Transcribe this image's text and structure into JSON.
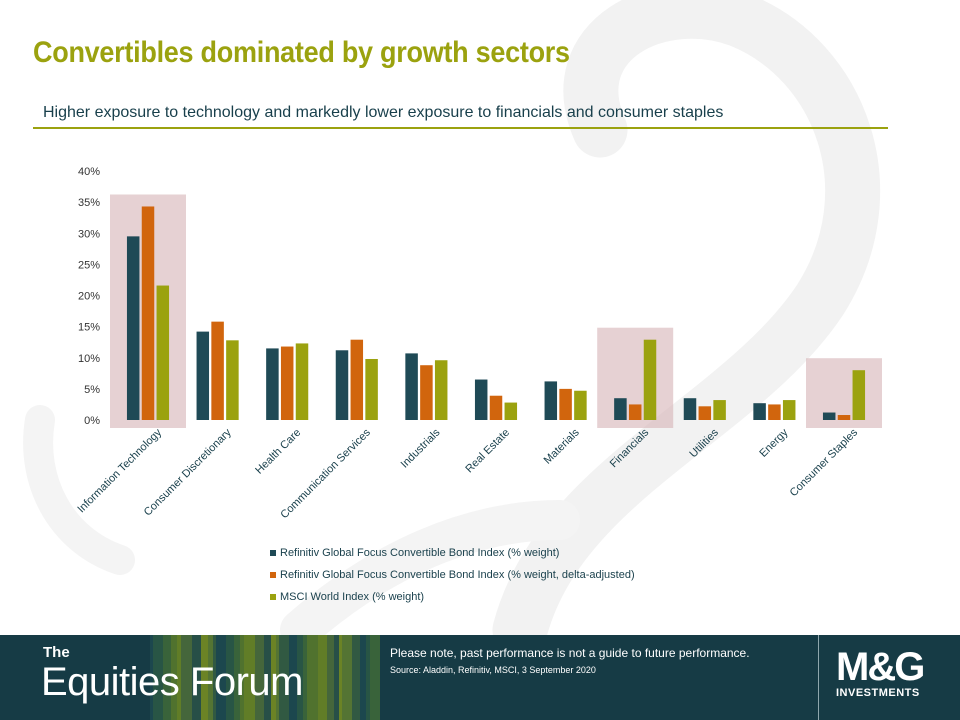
{
  "title": "Convertibles dominated by growth sectors",
  "subtitle": "Higher exposure to technology and markedly lower exposure to financials and consumer staples",
  "colors": {
    "accent": "#9ba20f",
    "series": [
      "#1f4a56",
      "#d1650d",
      "#9ba20f"
    ],
    "highlight": "#d6b3b6",
    "footer_bg": "#163b45",
    "text_dark": "#183f4b"
  },
  "chart_data": {
    "type": "bar",
    "categories": [
      "Information Technology",
      "Consumer Discretionary",
      "Health Care",
      "Communication Services",
      "Industrials",
      "Real Estate",
      "Materials",
      "Financials",
      "Utilities",
      "Energy",
      "Consumer Staples"
    ],
    "series": [
      {
        "name": "Refinitiv Global Focus Convertible Bond Index (% weight)",
        "values": [
          29.5,
          14.2,
          11.5,
          11.2,
          10.7,
          6.5,
          6.2,
          3.5,
          3.5,
          2.7,
          1.2
        ]
      },
      {
        "name": "Refinitiv Global Focus Convertible Bond Index (% weight, delta-adjusted)",
        "values": [
          34.3,
          15.8,
          11.8,
          12.9,
          8.8,
          3.9,
          5.0,
          2.5,
          2.2,
          2.5,
          0.8
        ]
      },
      {
        "name": "MSCI World Index (% weight)",
        "values": [
          21.6,
          12.8,
          12.3,
          9.8,
          9.6,
          2.8,
          4.7,
          12.9,
          3.2,
          3.2,
          8.0
        ]
      }
    ],
    "y_ticks": [
      "0%",
      "5%",
      "10%",
      "15%",
      "20%",
      "25%",
      "30%",
      "35%",
      "40%"
    ],
    "ylim": [
      0,
      40
    ],
    "highlighted_categories": [
      "Information Technology",
      "Financials",
      "Consumer Staples"
    ],
    "legend_position": "bottom"
  },
  "footer": {
    "brand_small": "The",
    "brand_big": "Equities Forum",
    "disclaimer": "Please note, past performance  is not a guide to future performance.",
    "source": "Source: Aladdin, Refinitiv, MSCI,  3 September 2020",
    "logo_main": "M&G",
    "logo_sub": "INVESTMENTS"
  }
}
